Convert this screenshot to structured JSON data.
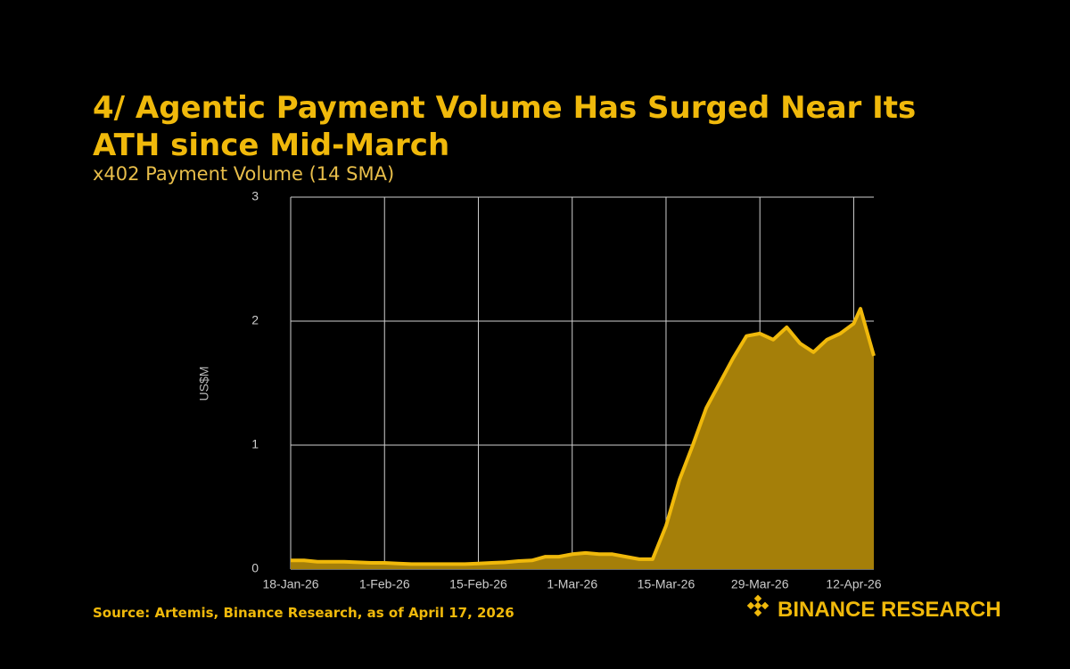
{
  "chart_data": {
    "type": "area",
    "title": "4/ Agentic Payment Volume Has Surged Near Its ATH since Mid-March",
    "subtitle": "x402 Payment Volume (14 SMA)",
    "y_label": "US$M",
    "source": "Source: Artemis, Binance Research, as of April 17, 2026",
    "brand": "BINANCE RESEARCH",
    "x": [
      "2026-01-18",
      "2026-01-20",
      "2026-01-22",
      "2026-01-24",
      "2026-01-26",
      "2026-01-28",
      "2026-01-30",
      "2026-02-01",
      "2026-02-03",
      "2026-02-05",
      "2026-02-07",
      "2026-02-09",
      "2026-02-11",
      "2026-02-13",
      "2026-02-15",
      "2026-02-17",
      "2026-02-19",
      "2026-02-21",
      "2026-02-23",
      "2026-02-25",
      "2026-02-27",
      "2026-03-01",
      "2026-03-03",
      "2026-03-05",
      "2026-03-07",
      "2026-03-09",
      "2026-03-11",
      "2026-03-13",
      "2026-03-15",
      "2026-03-17",
      "2026-03-19",
      "2026-03-21",
      "2026-03-23",
      "2026-03-25",
      "2026-03-27",
      "2026-03-29",
      "2026-03-31",
      "2026-04-02",
      "2026-04-04",
      "2026-04-06",
      "2026-04-08",
      "2026-04-10",
      "2026-04-12",
      "2026-04-13",
      "2026-04-15"
    ],
    "values": [
      0.07,
      0.07,
      0.06,
      0.06,
      0.06,
      0.055,
      0.05,
      0.05,
      0.045,
      0.04,
      0.04,
      0.04,
      0.04,
      0.04,
      0.045,
      0.05,
      0.055,
      0.065,
      0.07,
      0.1,
      0.1,
      0.12,
      0.13,
      0.12,
      0.12,
      0.1,
      0.08,
      0.08,
      0.35,
      0.72,
      1.0,
      1.3,
      1.5,
      1.7,
      1.88,
      1.9,
      1.85,
      1.95,
      1.82,
      1.75,
      1.85,
      1.9,
      1.98,
      2.1,
      1.72
    ],
    "color": "#f0b90b",
    "fill_color": "#a57f09",
    "xlim": [
      "2026-01-18",
      "2026-04-15"
    ],
    "xticks": [
      {
        "value": "2026-01-18",
        "label": "18-Jan-26"
      },
      {
        "value": "2026-02-01",
        "label": "1-Feb-26"
      },
      {
        "value": "2026-02-15",
        "label": "15-Feb-26"
      },
      {
        "value": "2026-03-01",
        "label": "1-Mar-26"
      },
      {
        "value": "2026-03-15",
        "label": "15-Mar-26"
      },
      {
        "value": "2026-03-29",
        "label": "29-Mar-26"
      },
      {
        "value": "2026-04-12",
        "label": "12-Apr-26"
      }
    ],
    "ylim": [
      0,
      3
    ],
    "yticks": [
      0,
      1,
      2,
      3
    ],
    "grid": true
  }
}
